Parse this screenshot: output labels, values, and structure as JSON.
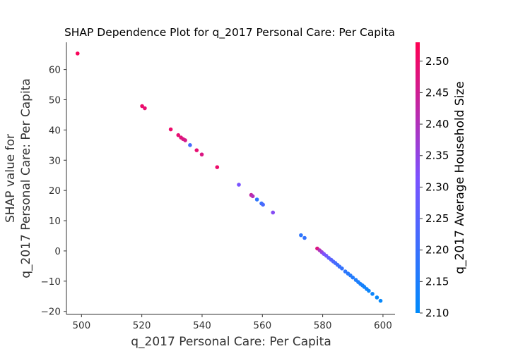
{
  "chart_data": {
    "type": "scatter",
    "title": "SHAP Dependence Plot for q_2017 Personal Care: Per Capita",
    "xlabel": "q_2017 Personal Care: Per Capita",
    "ylabel_lines": [
      "SHAP value for",
      "q_2017 Personal Care: Per Capita"
    ],
    "xlim": [
      495,
      604
    ],
    "ylim": [
      -21,
      69
    ],
    "xticks": [
      500,
      520,
      540,
      560,
      580,
      600
    ],
    "yticks": [
      -20,
      -10,
      0,
      10,
      20,
      30,
      40,
      50,
      60
    ],
    "colorbar": {
      "label": "q_2017 Average Household Size",
      "range": [
        2.1,
        2.53
      ],
      "ticks": [
        2.1,
        2.15,
        2.2,
        2.25,
        2.3,
        2.35,
        2.4,
        2.45,
        2.5
      ],
      "low_color": "#008bfb",
      "mid_color": "#7c52ff",
      "high_color": "#ff0052"
    },
    "grid": false,
    "points": [
      {
        "x": 498.7,
        "y": 65.3,
        "c": 2.52
      },
      {
        "x": 520.1,
        "y": 47.9,
        "c": 2.5
      },
      {
        "x": 521.0,
        "y": 47.2,
        "c": 2.49
      },
      {
        "x": 529.6,
        "y": 40.2,
        "c": 2.5
      },
      {
        "x": 532.1,
        "y": 38.3,
        "c": 2.49
      },
      {
        "x": 533.0,
        "y": 37.5,
        "c": 2.48
      },
      {
        "x": 533.7,
        "y": 37.0,
        "c": 2.47
      },
      {
        "x": 534.4,
        "y": 36.6,
        "c": 2.46
      },
      {
        "x": 536.0,
        "y": 35.0,
        "c": 2.22
      },
      {
        "x": 538.2,
        "y": 33.3,
        "c": 2.49
      },
      {
        "x": 539.9,
        "y": 31.9,
        "c": 2.47
      },
      {
        "x": 545.0,
        "y": 27.7,
        "c": 2.5
      },
      {
        "x": 552.2,
        "y": 21.9,
        "c": 2.31
      },
      {
        "x": 556.3,
        "y": 18.5,
        "c": 2.43
      },
      {
        "x": 556.8,
        "y": 18.1,
        "c": 2.4
      },
      {
        "x": 558.2,
        "y": 17.0,
        "c": 2.18
      },
      {
        "x": 559.7,
        "y": 15.7,
        "c": 2.2
      },
      {
        "x": 560.2,
        "y": 15.3,
        "c": 2.23
      },
      {
        "x": 563.5,
        "y": 12.7,
        "c": 2.33
      },
      {
        "x": 572.8,
        "y": 5.2,
        "c": 2.18
      },
      {
        "x": 574.0,
        "y": 4.3,
        "c": 2.19
      },
      {
        "x": 578.2,
        "y": 0.8,
        "c": 2.47
      },
      {
        "x": 579.0,
        "y": 0.2,
        "c": 2.4
      },
      {
        "x": 579.7,
        "y": -0.4,
        "c": 2.36
      },
      {
        "x": 580.4,
        "y": -1.0,
        "c": 2.32
      },
      {
        "x": 581.2,
        "y": -1.6,
        "c": 2.3
      },
      {
        "x": 582.0,
        "y": -2.3,
        "c": 2.27
      },
      {
        "x": 582.8,
        "y": -2.9,
        "c": 2.25
      },
      {
        "x": 583.5,
        "y": -3.5,
        "c": 2.24
      },
      {
        "x": 584.2,
        "y": -4.0,
        "c": 2.22
      },
      {
        "x": 584.9,
        "y": -4.6,
        "c": 2.21
      },
      {
        "x": 585.6,
        "y": -5.2,
        "c": 2.2
      },
      {
        "x": 586.4,
        "y": -5.8,
        "c": 2.19
      },
      {
        "x": 587.5,
        "y": -6.8,
        "c": 2.18
      },
      {
        "x": 588.4,
        "y": -7.5,
        "c": 2.17
      },
      {
        "x": 589.2,
        "y": -8.1,
        "c": 2.16
      },
      {
        "x": 590.0,
        "y": -8.8,
        "c": 2.16
      },
      {
        "x": 591.0,
        "y": -9.6,
        "c": 2.15
      },
      {
        "x": 591.8,
        "y": -10.3,
        "c": 2.15
      },
      {
        "x": 592.5,
        "y": -10.9,
        "c": 2.14
      },
      {
        "x": 593.2,
        "y": -11.4,
        "c": 2.14
      },
      {
        "x": 593.8,
        "y": -11.9,
        "c": 2.13
      },
      {
        "x": 594.6,
        "y": -12.6,
        "c": 2.13
      },
      {
        "x": 595.3,
        "y": -13.2,
        "c": 2.12
      },
      {
        "x": 596.5,
        "y": -14.2,
        "c": 2.12
      },
      {
        "x": 598.0,
        "y": -15.4,
        "c": 2.11
      },
      {
        "x": 599.2,
        "y": -16.5,
        "c": 2.11
      }
    ]
  }
}
